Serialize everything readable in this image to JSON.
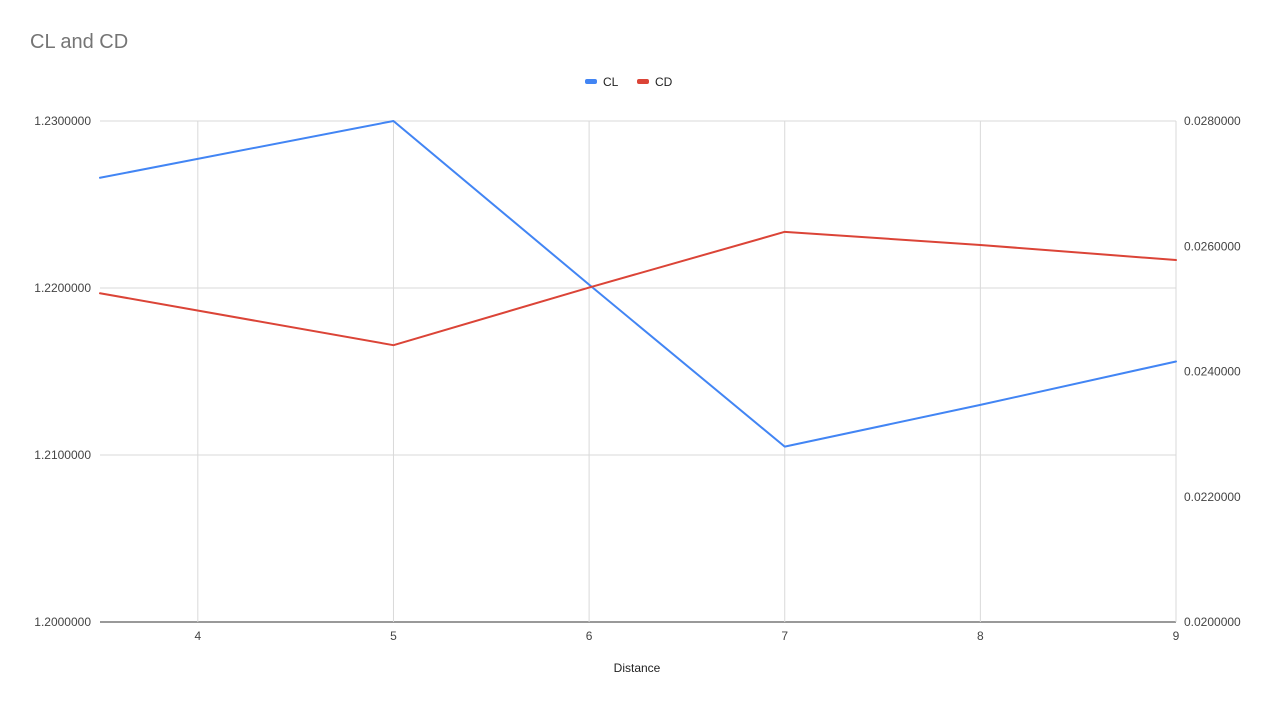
{
  "chart_data": {
    "type": "line",
    "title": "CL and CD",
    "xlabel": "Distance",
    "ylabel": "",
    "ylabel_right": "",
    "x": [
      3.5,
      5,
      6,
      7,
      8,
      9
    ],
    "xlim": [
      3.5,
      9
    ],
    "x_ticks": [
      "4",
      "5",
      "6",
      "7",
      "8",
      "9"
    ],
    "ylim": [
      1.2,
      1.23
    ],
    "y_ticks": [
      "1.2000000",
      "1.2100000",
      "1.2200000",
      "1.2300000"
    ],
    "y2lim": [
      0.02,
      0.028
    ],
    "y2_ticks": [
      "0.0200000",
      "0.0220000",
      "0.0240000",
      "0.0260000",
      "0.0280000"
    ],
    "grid": true,
    "legend_position": "top",
    "series": [
      {
        "name": "CL",
        "axis": "left",
        "color": "#4285f4",
        "values": [
          1.2266,
          1.23,
          1.2202,
          1.2105,
          1.213,
          1.2156
        ]
      },
      {
        "name": "CD",
        "axis": "right",
        "color": "#db4437",
        "values": [
          0.02525,
          0.02442,
          0.02534,
          0.02623,
          0.02602,
          0.02578
        ]
      }
    ]
  }
}
